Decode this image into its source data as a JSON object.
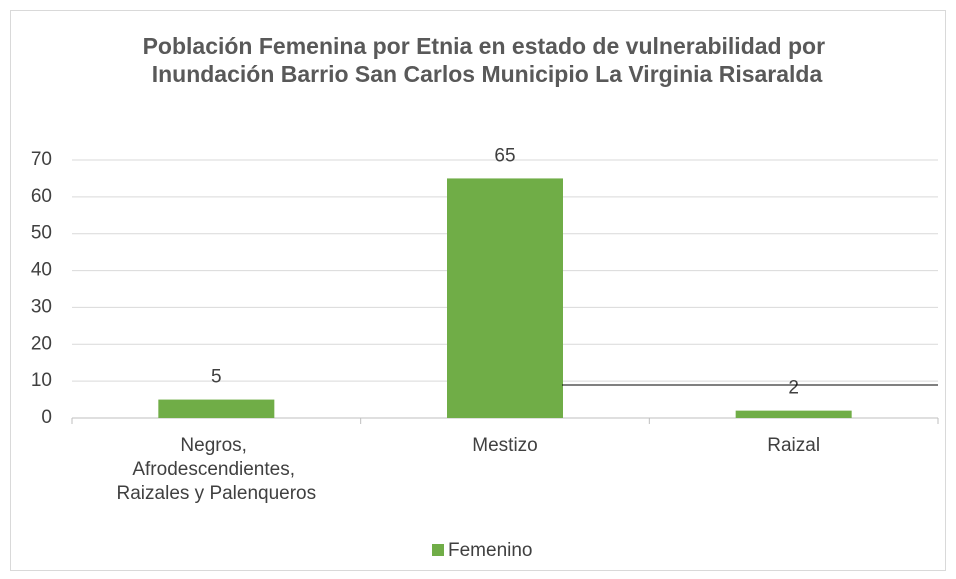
{
  "chart_data": {
    "type": "bar",
    "title": "Población Femenina por Etnia en estado de vulnerabilidad por Inundación Barrio San Carlos Municipio La Virginia Risaralda",
    "categories": [
      "Negros, Afrodescendientes, Raizales y Palenqueros",
      "Mestizo",
      "Raizal"
    ],
    "series": [
      {
        "name": "Femenino",
        "color": "#70ad47",
        "values": [
          5,
          65,
          2
        ]
      }
    ],
    "ylim": [
      0,
      70
    ],
    "yticks": [
      0,
      10,
      20,
      30,
      40,
      50,
      60,
      70
    ],
    "grid": true,
    "legend": "bottom"
  }
}
